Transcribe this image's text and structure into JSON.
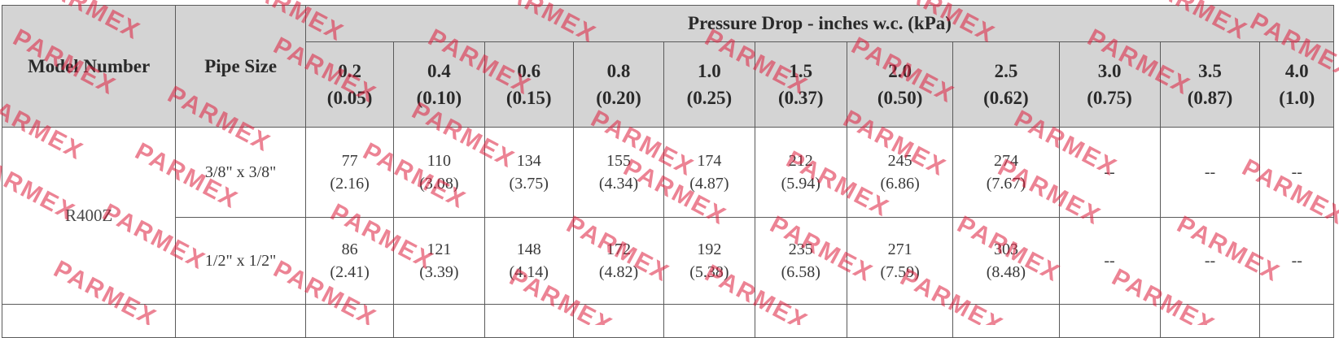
{
  "table": {
    "header": {
      "model_label": "Model Number",
      "pipe_label": "Pipe Size",
      "group_label": "Pressure Drop - inches w.c. (kPa)",
      "columns": [
        {
          "top": "0.2",
          "bottom": "(0.05)"
        },
        {
          "top": "0.4",
          "bottom": "(0.10)"
        },
        {
          "top": "0.6",
          "bottom": "(0.15)"
        },
        {
          "top": "0.8",
          "bottom": "(0.20)"
        },
        {
          "top": "1.0",
          "bottom": "(0.25)"
        },
        {
          "top": "1.5",
          "bottom": "(0.37)"
        },
        {
          "top": "2.0",
          "bottom": "(0.50)"
        },
        {
          "top": "2.5",
          "bottom": "(0.62)"
        },
        {
          "top": "3.0",
          "bottom": "(0.75)"
        },
        {
          "top": "3.5",
          "bottom": "(0.87)"
        },
        {
          "top": "4.0",
          "bottom": "(1.0)"
        }
      ]
    },
    "model": "R400Z",
    "rows": [
      {
        "pipe": "3/8\" x 3/8\"",
        "cells": [
          {
            "top": "77",
            "bottom": "(2.16)"
          },
          {
            "top": "110",
            "bottom": "(3.08)"
          },
          {
            "top": "134",
            "bottom": "(3.75)"
          },
          {
            "top": "155",
            "bottom": "(4.34)"
          },
          {
            "top": "174",
            "bottom": "(4.87)"
          },
          {
            "top": "212",
            "bottom": "(5.94)"
          },
          {
            "top": "245",
            "bottom": "(6.86)"
          },
          {
            "top": "274",
            "bottom": "(7.67)"
          },
          {
            "top": "--",
            "bottom": ""
          },
          {
            "top": "--",
            "bottom": ""
          },
          {
            "top": "--",
            "bottom": ""
          }
        ]
      },
      {
        "pipe": "1/2\" x 1/2\"",
        "cells": [
          {
            "top": "86",
            "bottom": "(2.41)"
          },
          {
            "top": "121",
            "bottom": "(3.39)"
          },
          {
            "top": "148",
            "bottom": "(4.14)"
          },
          {
            "top": "172",
            "bottom": "(4.82)"
          },
          {
            "top": "192",
            "bottom": "(5.38)"
          },
          {
            "top": "235",
            "bottom": "(6.58)"
          },
          {
            "top": "271",
            "bottom": "(7.59)"
          },
          {
            "top": "303",
            "bottom": "(8.48)"
          },
          {
            "top": "--",
            "bottom": ""
          },
          {
            "top": "--",
            "bottom": ""
          },
          {
            "top": "--",
            "bottom": ""
          }
        ]
      }
    ]
  },
  "watermark": {
    "text": "PARMEX",
    "color": "#dc1e3c"
  }
}
